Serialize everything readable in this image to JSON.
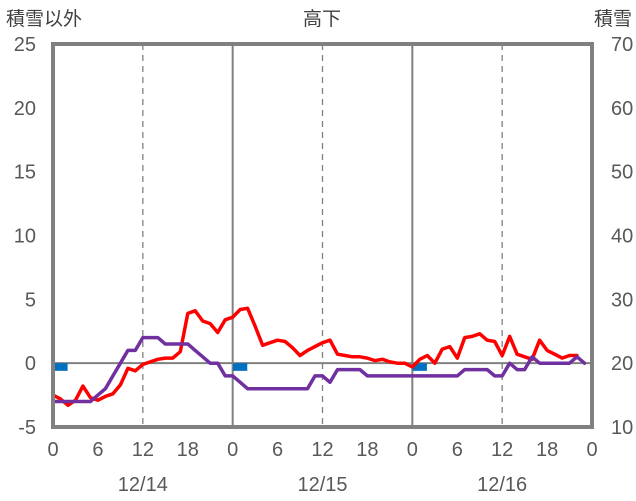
{
  "chart_data": {
    "type": "line",
    "title": "高下",
    "y_left_label": "積雪以外",
    "y_right_label": "積雪",
    "y_left_range": [
      -5,
      25
    ],
    "y_left_ticks": [
      "25",
      "20",
      "15",
      "10",
      "5",
      "0",
      "-5"
    ],
    "y_right_range": [
      10,
      70
    ],
    "y_right_ticks": [
      "70",
      "60",
      "50",
      "40",
      "30",
      "20",
      "10"
    ],
    "x_range_hours": [
      0,
      72
    ],
    "x_tick_labels": [
      "0",
      "6",
      "12",
      "18",
      "0",
      "6",
      "12",
      "18",
      "0",
      "6",
      "12",
      "18",
      "0"
    ],
    "date_labels": [
      "12/14",
      "12/15",
      "12/16"
    ],
    "grid": "dashed vertical at 12h, solid vertical at day boundaries, solid horizontal at 0",
    "series": [
      {
        "axis": "left",
        "color": "#ff0000",
        "hours": [
          0,
          1,
          2,
          3,
          4,
          5,
          6,
          7,
          8,
          9,
          10,
          11,
          12,
          13,
          14,
          15,
          16,
          17,
          18,
          19,
          20,
          21,
          22,
          23,
          24,
          25,
          26,
          27,
          28,
          29,
          30,
          31,
          32,
          33,
          34,
          35,
          36,
          37,
          38,
          39,
          40,
          41,
          42,
          43,
          44,
          45,
          46,
          47,
          48,
          49,
          50,
          51,
          52,
          53,
          54,
          55,
          56,
          57,
          58,
          59,
          60,
          61,
          62,
          63,
          64,
          65,
          66,
          67,
          68,
          69,
          70,
          71,
          72
        ],
        "values": [
          -2.5,
          -2.8,
          -3.3,
          -2.9,
          -1.8,
          -2.7,
          -2.9,
          -2.6,
          -2.4,
          -1.7,
          -0.4,
          -0.6,
          -0.1,
          0.1,
          0.3,
          0.4,
          0.4,
          0.9,
          3.9,
          4.1,
          3.3,
          3.1,
          2.4,
          3.4,
          3.6,
          4.2,
          4.3,
          2.9,
          1.4,
          1.6,
          1.8,
          1.7,
          1.2,
          0.6,
          1.0,
          1.3,
          1.6,
          1.8,
          0.7,
          0.6,
          0.5,
          0.5,
          0.4,
          0.2,
          0.3,
          0.1,
          0.0,
          0.0,
          -0.3,
          0.3,
          0.6,
          0.0,
          1.1,
          1.3,
          0.4,
          2.0,
          2.1,
          2.3,
          1.8,
          1.7,
          0.6,
          2.1,
          0.7,
          0.5,
          0.3,
          1.8,
          1.0,
          0.7,
          0.4,
          0.6,
          0.6,
          null,
          null
        ]
      },
      {
        "axis": "left",
        "color": "#7030a0",
        "hours": [
          0,
          1,
          2,
          3,
          4,
          5,
          6,
          7,
          8,
          9,
          10,
          11,
          12,
          13,
          14,
          15,
          16,
          17,
          18,
          19,
          20,
          21,
          22,
          23,
          24,
          25,
          26,
          27,
          28,
          29,
          30,
          31,
          32,
          33,
          34,
          35,
          36,
          37,
          38,
          39,
          40,
          41,
          42,
          43,
          44,
          45,
          46,
          47,
          48,
          49,
          50,
          51,
          52,
          53,
          54,
          55,
          56,
          57,
          58,
          59,
          60,
          61,
          62,
          63,
          64,
          65,
          66,
          67,
          68,
          69,
          70,
          71,
          72
        ],
        "values": [
          -3,
          -3,
          -3,
          -3,
          -3,
          -3,
          -2.5,
          -2,
          -1,
          0,
          1,
          1,
          2,
          2,
          2,
          1.5,
          1.5,
          1.5,
          1.5,
          1,
          0.5,
          0,
          0,
          -1,
          -1,
          -1.5,
          -2,
          -2,
          -2,
          -2,
          -2,
          -2,
          -2,
          -2,
          -2,
          -1,
          -1,
          -1.5,
          -0.5,
          -0.5,
          -0.5,
          -0.5,
          -1,
          -1,
          -1,
          -1,
          -1,
          -1,
          -1,
          -1,
          -1,
          -1,
          -1,
          -1,
          -1,
          -0.5,
          -0.5,
          -0.5,
          -0.5,
          -1,
          -1,
          0,
          -0.5,
          -0.5,
          0.5,
          0,
          0,
          0,
          0,
          0,
          0.5,
          0,
          null
        ]
      },
      {
        "axis": "left",
        "type": "bar",
        "color": "#0070c0",
        "hours": [
          1,
          25,
          49
        ],
        "values": [
          -0.6,
          -0.6,
          -0.6
        ]
      }
    ]
  }
}
